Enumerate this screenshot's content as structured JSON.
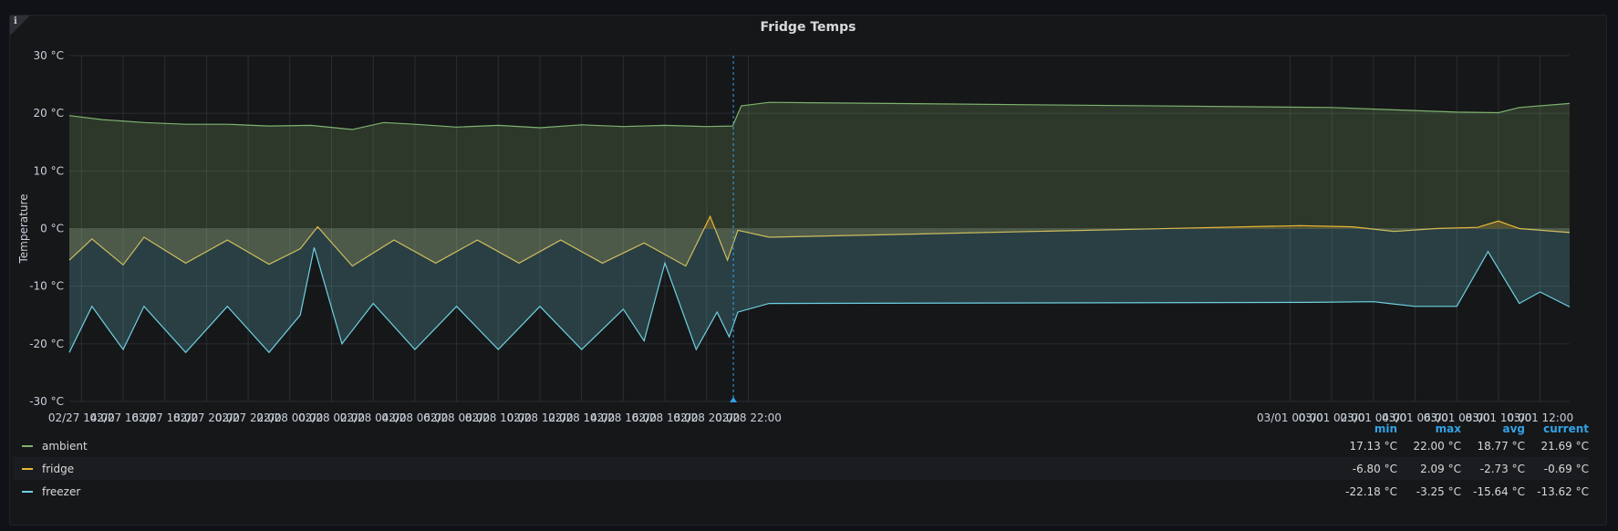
{
  "panel": {
    "title": "Fridge Temps",
    "info_glyph": "i"
  },
  "colors": {
    "ambient": "#7eb26d",
    "fridge": "#eab839",
    "freezer": "#6ed0e0",
    "accent": "#33a2e5"
  },
  "legend": {
    "headers": {
      "min": "min",
      "max": "max",
      "avg": "avg",
      "current": "current"
    },
    "rows": [
      {
        "name": "ambient",
        "min": "17.13 °C",
        "max": "22.00 °C",
        "avg": "18.77 °C",
        "current": "21.69 °C"
      },
      {
        "name": "fridge",
        "min": "-6.80 °C",
        "max": "2.09 °C",
        "avg": "-2.73 °C",
        "current": "-0.69 °C"
      },
      {
        "name": "freezer",
        "min": "-22.18 °C",
        "max": "-3.25 °C",
        "avg": "-15.64 °C",
        "current": "-13.62 °C"
      }
    ]
  },
  "chart_data": {
    "type": "area",
    "title": "Fridge Temps",
    "ylabel": "Temperature",
    "xlabel": "",
    "y_unit": "°C",
    "ylim": [
      -30,
      30
    ],
    "yticks": [
      "30 °C",
      "20 °C",
      "10 °C",
      "0 °C",
      "-10 °C",
      "-20 °C",
      "-30 °C"
    ],
    "x_start": "02/27 13:25",
    "x_end": "03/01 13:25",
    "xticks": [
      "02/27 14:00",
      "02/27 16:00",
      "02/27 18:00",
      "02/27 20:00",
      "02/27 22:00",
      "02/28 00:00",
      "02/28 02:00",
      "02/28 04:00",
      "02/28 06:00",
      "02/28 08:00",
      "02/28 10:00",
      "02/28 12:00",
      "02/28 14:00",
      "02/28 16:00",
      "02/28 18:00",
      "02/28 20:00",
      "02/28 22:00",
      "03/01 00:00",
      "03/01 02:00",
      "03/01 04:00",
      "03/01 06:00",
      "03/01 08:00",
      "03/01 10:00",
      "03/01 12:00"
    ],
    "crosshair": "02/28 21:17",
    "grid": true,
    "legend_position": "bottom",
    "series": [
      {
        "name": "ambient",
        "color": "#7eb26d",
        "points": [
          [
            "02/27 13:25",
            19.6
          ],
          [
            "02/27 15:00",
            18.9
          ],
          [
            "02/27 17:00",
            18.4
          ],
          [
            "02/27 19:00",
            18.1
          ],
          [
            "02/27 21:00",
            18.1
          ],
          [
            "02/27 23:00",
            17.8
          ],
          [
            "02/28 01:00",
            17.9
          ],
          [
            "02/28 03:00",
            17.2
          ],
          [
            "02/28 04:30",
            18.4
          ],
          [
            "02/28 06:00",
            18.1
          ],
          [
            "02/28 08:00",
            17.6
          ],
          [
            "02/28 10:00",
            17.9
          ],
          [
            "02/28 12:00",
            17.5
          ],
          [
            "02/28 14:00",
            18.0
          ],
          [
            "02/28 16:00",
            17.7
          ],
          [
            "02/28 18:00",
            17.9
          ],
          [
            "02/28 20:00",
            17.7
          ],
          [
            "02/28 21:15",
            17.8
          ],
          [
            "02/28 21:40",
            21.3
          ],
          [
            "02/28 23:00",
            21.9
          ],
          [
            "03/01 02:00",
            21.0
          ],
          [
            "03/01 05:00",
            20.6
          ],
          [
            "03/01 08:00",
            20.2
          ],
          [
            "03/01 10:00",
            20.1
          ],
          [
            "03/01 11:00",
            21.0
          ],
          [
            "03/01 13:25",
            21.7
          ]
        ]
      },
      {
        "name": "fridge",
        "color": "#eab839",
        "points": [
          [
            "02/27 13:25",
            -5.5
          ],
          [
            "02/27 14:30",
            -1.8
          ],
          [
            "02/27 16:00",
            -6.3
          ],
          [
            "02/27 17:00",
            -1.5
          ],
          [
            "02/27 19:00",
            -6.0
          ],
          [
            "02/27 21:00",
            -2.0
          ],
          [
            "02/27 23:00",
            -6.2
          ],
          [
            "02/28 00:30",
            -3.5
          ],
          [
            "02/28 01:20",
            0.3
          ],
          [
            "02/28 03:00",
            -6.5
          ],
          [
            "02/28 05:00",
            -2.0
          ],
          [
            "02/28 07:00",
            -6.0
          ],
          [
            "02/28 09:00",
            -2.0
          ],
          [
            "02/28 11:00",
            -6.0
          ],
          [
            "02/28 13:00",
            -2.0
          ],
          [
            "02/28 15:00",
            -6.0
          ],
          [
            "02/28 17:00",
            -2.5
          ],
          [
            "02/28 19:00",
            -6.5
          ],
          [
            "02/28 20:10",
            2.1
          ],
          [
            "02/28 21:00",
            -5.5
          ],
          [
            "02/28 21:30",
            -0.3
          ],
          [
            "02/28 23:00",
            -1.5
          ],
          [
            "03/01 00:30",
            0.5
          ],
          [
            "03/01 03:00",
            0.3
          ],
          [
            "03/01 05:00",
            -0.5
          ],
          [
            "03/01 07:00",
            0.0
          ],
          [
            "03/01 09:00",
            0.2
          ],
          [
            "03/01 10:00",
            1.3
          ],
          [
            "03/01 11:00",
            0.0
          ],
          [
            "03/01 13:25",
            -0.7
          ]
        ]
      },
      {
        "name": "freezer",
        "color": "#6ed0e0",
        "points": [
          [
            "02/27 13:25",
            -21.5
          ],
          [
            "02/27 14:30",
            -13.5
          ],
          [
            "02/27 16:00",
            -21.0
          ],
          [
            "02/27 17:00",
            -13.5
          ],
          [
            "02/27 19:00",
            -21.5
          ],
          [
            "02/27 21:00",
            -13.5
          ],
          [
            "02/27 23:00",
            -21.5
          ],
          [
            "02/28 00:30",
            -15.0
          ],
          [
            "02/28 01:10",
            -3.3
          ],
          [
            "02/28 02:30",
            -20.0
          ],
          [
            "02/28 04:00",
            -13.0
          ],
          [
            "02/28 06:00",
            -21.0
          ],
          [
            "02/28 08:00",
            -13.5
          ],
          [
            "02/28 10:00",
            -21.0
          ],
          [
            "02/28 12:00",
            -13.5
          ],
          [
            "02/28 14:00",
            -21.0
          ],
          [
            "02/28 16:00",
            -14.0
          ],
          [
            "02/28 17:00",
            -19.5
          ],
          [
            "02/28 18:00",
            -6.0
          ],
          [
            "02/28 19:30",
            -21.0
          ],
          [
            "02/28 20:30",
            -14.5
          ],
          [
            "02/28 21:05",
            -18.8
          ],
          [
            "02/28 21:30",
            -14.5
          ],
          [
            "02/28 23:00",
            -13.0
          ],
          [
            "03/01 01:00",
            -12.8
          ],
          [
            "03/01 04:00",
            -12.7
          ],
          [
            "03/01 06:00",
            -13.5
          ],
          [
            "03/01 08:00",
            -13.5
          ],
          [
            "03/01 09:30",
            -4.0
          ],
          [
            "03/01 11:00",
            -13.0
          ],
          [
            "03/01 12:00",
            -11.0
          ],
          [
            "03/01 13:25",
            -13.6
          ]
        ]
      }
    ]
  }
}
